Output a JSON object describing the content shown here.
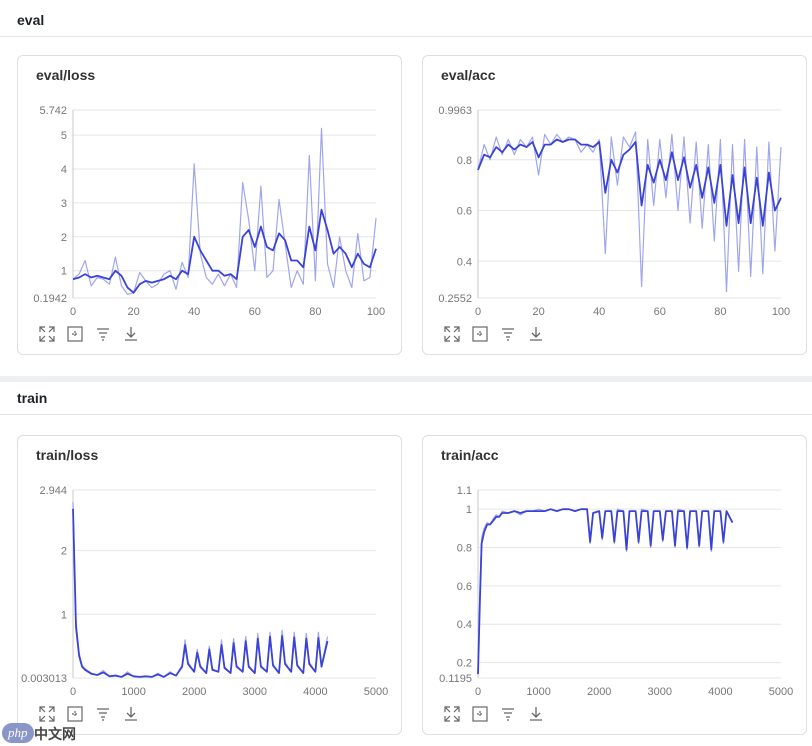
{
  "sections": [
    {
      "title": "eval"
    },
    {
      "title": "train"
    }
  ],
  "toolbar_icons": [
    "expand-icon",
    "fit-icon",
    "filter-icon",
    "download-icon"
  ],
  "colors": {
    "smoothed": "#3b43d6",
    "raw": "#8f96ea",
    "grid": "#e6e6e6"
  },
  "watermark": {
    "badge": "php",
    "text": "中文网"
  },
  "chart_data": [
    {
      "type": "line",
      "title": "eval/loss",
      "xlim": [
        0,
        100
      ],
      "ylim": [
        0.1942,
        5.742
      ],
      "x_ticks": [
        "0",
        "20",
        "40",
        "60",
        "80",
        "100"
      ],
      "y_ticks": [
        "5.742",
        "5",
        "4",
        "3",
        "2",
        "1",
        "0.1942"
      ],
      "x_values": [
        0,
        2,
        4,
        6,
        8,
        10,
        12,
        14,
        16,
        18,
        20,
        22,
        24,
        26,
        28,
        30,
        32,
        34,
        36,
        38,
        40,
        42,
        44,
        46,
        48,
        50,
        52,
        54,
        56,
        58,
        60,
        62,
        64,
        66,
        68,
        70,
        72,
        74,
        76,
        78,
        80,
        82,
        84,
        86,
        88,
        90,
        92,
        94,
        96,
        98,
        100
      ],
      "series": [
        {
          "role": "raw",
          "values": [
            0.75,
            0.9,
            1.3,
            0.55,
            0.8,
            0.75,
            0.6,
            1.4,
            0.55,
            0.3,
            0.35,
            0.95,
            0.7,
            0.5,
            0.6,
            0.9,
            1.0,
            0.45,
            1.25,
            0.8,
            4.15,
            1.5,
            0.8,
            0.6,
            0.9,
            0.55,
            0.9,
            0.5,
            3.6,
            2.5,
            1.0,
            3.5,
            0.8,
            1.0,
            3.1,
            1.8,
            0.5,
            1.0,
            0.6,
            4.4,
            0.7,
            5.2,
            1.2,
            0.5,
            2.0,
            1.0,
            0.5,
            2.1,
            0.7,
            0.8,
            2.55
          ]
        },
        {
          "role": "smoothed",
          "values": [
            0.75,
            0.8,
            0.9,
            0.8,
            0.85,
            0.8,
            0.75,
            1.0,
            0.85,
            0.5,
            0.35,
            0.6,
            0.7,
            0.65,
            0.7,
            0.75,
            0.85,
            0.75,
            1.0,
            0.9,
            2.0,
            1.6,
            1.3,
            1.0,
            1.0,
            0.85,
            0.9,
            0.75,
            2.0,
            2.2,
            1.7,
            2.3,
            1.7,
            1.6,
            2.1,
            1.9,
            1.3,
            1.3,
            1.1,
            2.3,
            1.6,
            2.8,
            2.2,
            1.5,
            1.7,
            1.5,
            1.1,
            1.5,
            1.2,
            1.1,
            1.65
          ]
        }
      ]
    },
    {
      "type": "line",
      "title": "eval/acc",
      "xlim": [
        0,
        100
      ],
      "ylim": [
        0.2552,
        0.9963
      ],
      "x_ticks": [
        "0",
        "20",
        "40",
        "60",
        "80",
        "100"
      ],
      "y_ticks": [
        "0.9963",
        "0.8",
        "0.6",
        "0.4",
        "0.2552"
      ],
      "x_values": [
        0,
        2,
        4,
        6,
        8,
        10,
        12,
        14,
        16,
        18,
        20,
        22,
        24,
        26,
        28,
        30,
        32,
        34,
        36,
        38,
        40,
        42,
        44,
        46,
        48,
        50,
        52,
        54,
        56,
        58,
        60,
        62,
        64,
        66,
        68,
        70,
        72,
        74,
        76,
        78,
        80,
        82,
        84,
        86,
        88,
        90,
        92,
        94,
        96,
        98,
        100
      ],
      "series": [
        {
          "role": "raw",
          "values": [
            0.76,
            0.86,
            0.8,
            0.89,
            0.82,
            0.88,
            0.82,
            0.88,
            0.85,
            0.89,
            0.74,
            0.9,
            0.86,
            0.9,
            0.87,
            0.89,
            0.88,
            0.83,
            0.86,
            0.83,
            0.88,
            0.43,
            0.89,
            0.7,
            0.89,
            0.85,
            0.91,
            0.3,
            0.88,
            0.62,
            0.88,
            0.65,
            0.9,
            0.6,
            0.89,
            0.55,
            0.87,
            0.53,
            0.86,
            0.48,
            0.88,
            0.28,
            0.86,
            0.36,
            0.88,
            0.34,
            0.85,
            0.35,
            0.87,
            0.44,
            0.85
          ]
        },
        {
          "role": "smoothed",
          "values": [
            0.76,
            0.82,
            0.81,
            0.85,
            0.83,
            0.86,
            0.84,
            0.86,
            0.85,
            0.87,
            0.81,
            0.86,
            0.86,
            0.88,
            0.87,
            0.88,
            0.88,
            0.86,
            0.86,
            0.85,
            0.87,
            0.67,
            0.8,
            0.75,
            0.82,
            0.84,
            0.87,
            0.62,
            0.78,
            0.71,
            0.8,
            0.72,
            0.83,
            0.72,
            0.81,
            0.69,
            0.78,
            0.65,
            0.77,
            0.63,
            0.78,
            0.54,
            0.74,
            0.55,
            0.77,
            0.55,
            0.73,
            0.54,
            0.75,
            0.6,
            0.65
          ]
        }
      ]
    },
    {
      "type": "line",
      "title": "train/loss",
      "xlim": [
        0,
        5000
      ],
      "ylim": [
        0.003013,
        2.944
      ],
      "x_ticks": [
        "0",
        "1000",
        "2000",
        "3000",
        "4000",
        "5000"
      ],
      "y_ticks": [
        "2.944",
        "2",
        "1",
        "0.003013"
      ],
      "x_values": [
        0,
        50,
        100,
        150,
        200,
        300,
        400,
        500,
        600,
        700,
        800,
        900,
        1000,
        1100,
        1200,
        1300,
        1400,
        1500,
        1600,
        1700,
        1800,
        1850,
        1900,
        2000,
        2050,
        2100,
        2200,
        2250,
        2300,
        2400,
        2450,
        2500,
        2600,
        2650,
        2700,
        2800,
        2850,
        2900,
        3000,
        3050,
        3100,
        3200,
        3250,
        3300,
        3400,
        3450,
        3500,
        3600,
        3650,
        3700,
        3800,
        3850,
        3900,
        4000,
        4050,
        4100,
        4200
      ],
      "series": [
        {
          "role": "raw",
          "values": [
            2.75,
            0.9,
            0.4,
            0.2,
            0.15,
            0.08,
            0.05,
            0.12,
            0.03,
            0.05,
            0.02,
            0.1,
            0.03,
            0.02,
            0.03,
            0.02,
            0.08,
            0.02,
            0.1,
            0.04,
            0.2,
            0.6,
            0.25,
            0.1,
            0.45,
            0.2,
            0.08,
            0.5,
            0.15,
            0.1,
            0.6,
            0.18,
            0.08,
            0.62,
            0.2,
            0.1,
            0.65,
            0.2,
            0.08,
            0.7,
            0.2,
            0.1,
            0.72,
            0.22,
            0.08,
            0.75,
            0.25,
            0.1,
            0.72,
            0.22,
            0.08,
            0.7,
            0.25,
            0.1,
            0.72,
            0.2,
            0.65
          ]
        },
        {
          "role": "smoothed",
          "values": [
            2.65,
            0.8,
            0.35,
            0.18,
            0.13,
            0.07,
            0.05,
            0.09,
            0.03,
            0.04,
            0.02,
            0.07,
            0.03,
            0.02,
            0.03,
            0.02,
            0.06,
            0.02,
            0.08,
            0.04,
            0.18,
            0.52,
            0.22,
            0.1,
            0.4,
            0.18,
            0.08,
            0.45,
            0.13,
            0.1,
            0.52,
            0.16,
            0.08,
            0.55,
            0.18,
            0.1,
            0.58,
            0.18,
            0.08,
            0.62,
            0.18,
            0.1,
            0.65,
            0.2,
            0.08,
            0.66,
            0.22,
            0.1,
            0.64,
            0.2,
            0.08,
            0.62,
            0.22,
            0.1,
            0.63,
            0.18,
            0.58
          ]
        }
      ]
    },
    {
      "type": "line",
      "title": "train/acc",
      "xlim": [
        0,
        5000
      ],
      "ylim": [
        0.1195,
        1.1
      ],
      "x_ticks": [
        "0",
        "1000",
        "2000",
        "3000",
        "4000",
        "5000"
      ],
      "y_ticks": [
        "1.1",
        "1",
        "0.8",
        "0.6",
        "0.4",
        "0.2",
        "0.1195"
      ],
      "x_values": [
        0,
        30,
        60,
        100,
        150,
        200,
        250,
        300,
        350,
        400,
        500,
        600,
        700,
        800,
        900,
        1000,
        1100,
        1200,
        1300,
        1400,
        1500,
        1600,
        1700,
        1800,
        1850,
        1900,
        2000,
        2050,
        2100,
        2200,
        2250,
        2300,
        2400,
        2450,
        2500,
        2600,
        2650,
        2700,
        2800,
        2850,
        2900,
        3000,
        3050,
        3100,
        3200,
        3250,
        3300,
        3400,
        3450,
        3500,
        3600,
        3650,
        3700,
        3800,
        3850,
        3900,
        4000,
        4050,
        4100,
        4200
      ],
      "series": [
        {
          "role": "raw",
          "values": [
            0.14,
            0.55,
            0.85,
            0.9,
            0.93,
            0.92,
            0.95,
            0.97,
            0.96,
            0.99,
            0.98,
            0.99,
            0.97,
            0.99,
            0.99,
            1.0,
            0.99,
            1.0,
            0.99,
            1.0,
            1.0,
            0.99,
            1.0,
            1.0,
            0.82,
            0.98,
            0.99,
            0.84,
            0.99,
            0.99,
            0.82,
            1.0,
            0.99,
            0.78,
            0.99,
            0.99,
            0.82,
            1.0,
            0.99,
            0.8,
            0.99,
            0.99,
            0.83,
            0.99,
            0.99,
            0.8,
            1.0,
            0.99,
            0.79,
            0.99,
            0.99,
            0.8,
            0.99,
            0.99,
            0.78,
            0.99,
            0.99,
            0.82,
            0.99,
            0.93
          ]
        },
        {
          "role": "smoothed",
          "values": [
            0.14,
            0.5,
            0.82,
            0.88,
            0.92,
            0.92,
            0.94,
            0.96,
            0.96,
            0.98,
            0.98,
            0.99,
            0.98,
            0.99,
            0.99,
            0.99,
            0.99,
            1.0,
            0.99,
            1.0,
            1.0,
            0.99,
            1.0,
            1.0,
            0.83,
            0.98,
            0.99,
            0.85,
            0.99,
            0.99,
            0.83,
            0.99,
            0.99,
            0.79,
            0.99,
            0.99,
            0.83,
            0.99,
            0.99,
            0.81,
            0.99,
            0.99,
            0.84,
            0.99,
            0.99,
            0.81,
            0.99,
            0.99,
            0.8,
            0.99,
            0.99,
            0.81,
            0.99,
            0.99,
            0.79,
            0.99,
            0.99,
            0.83,
            0.99,
            0.93
          ]
        }
      ]
    }
  ]
}
